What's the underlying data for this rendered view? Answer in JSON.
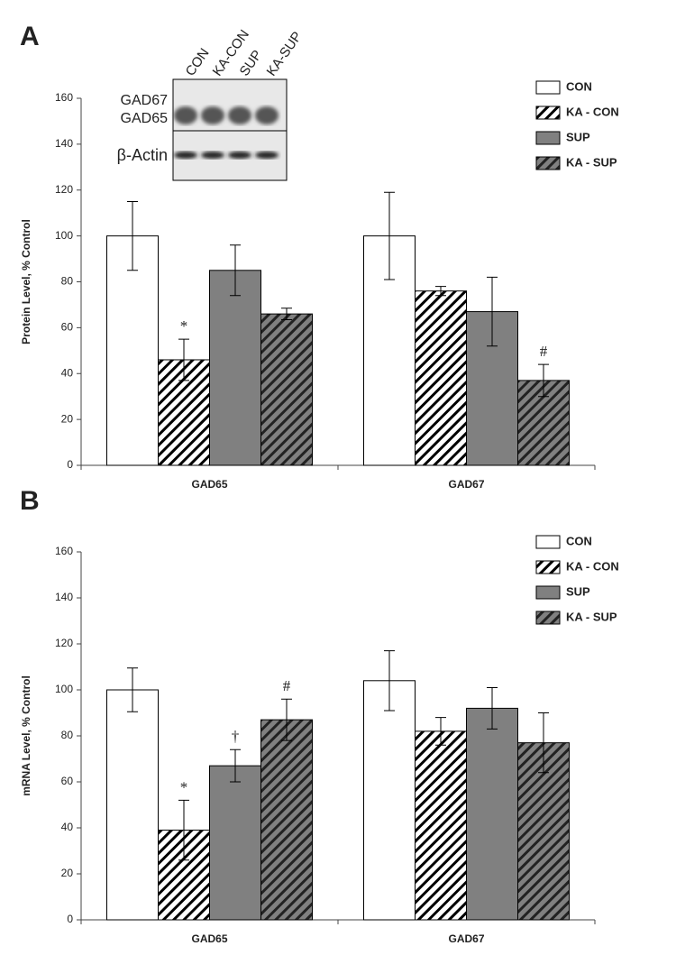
{
  "chart_data": [
    {
      "type": "bar",
      "panel_label": "A",
      "y_label": "Protein Level, % Control",
      "categories": [
        "GAD65",
        "GAD67"
      ],
      "ylim": [
        0,
        160
      ],
      "yticks": [
        0,
        20,
        40,
        60,
        80,
        100,
        120,
        140,
        160
      ],
      "legend": "upper right",
      "series": [
        {
          "name": "CON",
          "color": "#ffffff",
          "hatch": false,
          "values": [
            100,
            100
          ],
          "errors": [
            15,
            19
          ],
          "annotations": [
            null,
            null
          ]
        },
        {
          "name": "KA - CON",
          "color": "#ffffff",
          "hatch": true,
          "values": [
            46,
            76
          ],
          "errors": [
            9,
            2
          ],
          "annotations": [
            "*",
            null
          ]
        },
        {
          "name": "SUP",
          "color": "#808080",
          "hatch": false,
          "values": [
            85,
            67
          ],
          "errors": [
            11,
            15
          ],
          "annotations": [
            null,
            null
          ]
        },
        {
          "name": "KA - SUP",
          "color": "#808080",
          "hatch": true,
          "values": [
            66,
            37
          ],
          "errors": [
            2.5,
            7
          ],
          "annotations": [
            null,
            "#"
          ]
        }
      ],
      "inset": {
        "lanes": [
          "CON",
          "KA-CON",
          "SUP",
          "KA-SUP"
        ],
        "bands": [
          "GAD67",
          "GAD65"
        ],
        "control": "β-Actin"
      }
    },
    {
      "type": "bar",
      "panel_label": "B",
      "y_label": "mRNA Level, % Control",
      "categories": [
        "GAD65",
        "GAD67"
      ],
      "ylim": [
        0,
        160
      ],
      "yticks": [
        0,
        20,
        40,
        60,
        80,
        100,
        120,
        140,
        160
      ],
      "legend": "upper right",
      "series": [
        {
          "name": "CON",
          "color": "#ffffff",
          "hatch": false,
          "values": [
            100,
            104
          ],
          "errors": [
            9.5,
            13
          ],
          "annotations": [
            null,
            null
          ]
        },
        {
          "name": "KA - CON",
          "color": "#ffffff",
          "hatch": true,
          "values": [
            39,
            82
          ],
          "errors": [
            13,
            6
          ],
          "annotations": [
            "*",
            null
          ]
        },
        {
          "name": "SUP",
          "color": "#808080",
          "hatch": false,
          "values": [
            67,
            92
          ],
          "errors": [
            7,
            9
          ],
          "annotations": [
            "†",
            null
          ]
        },
        {
          "name": "KA - SUP",
          "color": "#808080",
          "hatch": true,
          "values": [
            87,
            77
          ],
          "errors": [
            9,
            13
          ],
          "annotations": [
            "#",
            null
          ]
        }
      ]
    }
  ]
}
